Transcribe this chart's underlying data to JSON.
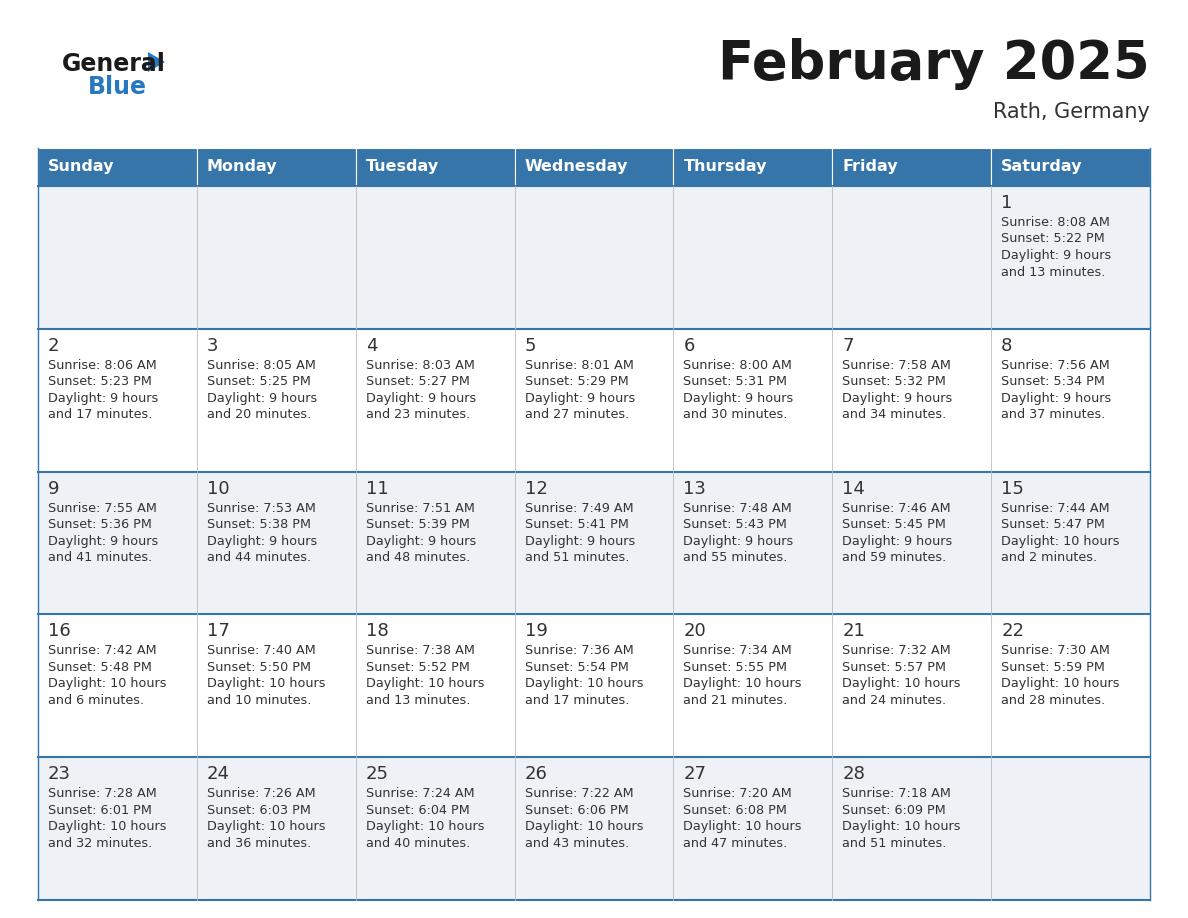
{
  "title": "February 2025",
  "subtitle": "Rath, Germany",
  "days_of_week": [
    "Sunday",
    "Monday",
    "Tuesday",
    "Wednesday",
    "Thursday",
    "Friday",
    "Saturday"
  ],
  "header_bg": "#3575aa",
  "header_text": "#ffffff",
  "cell_bg_odd": "#eef2f7",
  "cell_bg_even": "#ffffff",
  "border_color": "#3575aa",
  "text_color": "#333333",
  "title_color": "#1a1a1a",
  "subtitle_color": "#333333",
  "calendar": [
    [
      {
        "day": null
      },
      {
        "day": null
      },
      {
        "day": null
      },
      {
        "day": null
      },
      {
        "day": null
      },
      {
        "day": null
      },
      {
        "day": 1,
        "sunrise": "8:08 AM",
        "sunset": "5:22 PM",
        "daylight_h": "9 hours",
        "daylight_m": "13 minutes"
      }
    ],
    [
      {
        "day": 2,
        "sunrise": "8:06 AM",
        "sunset": "5:23 PM",
        "daylight_h": "9 hours",
        "daylight_m": "17 minutes"
      },
      {
        "day": 3,
        "sunrise": "8:05 AM",
        "sunset": "5:25 PM",
        "daylight_h": "9 hours",
        "daylight_m": "20 minutes"
      },
      {
        "day": 4,
        "sunrise": "8:03 AM",
        "sunset": "5:27 PM",
        "daylight_h": "9 hours",
        "daylight_m": "23 minutes"
      },
      {
        "day": 5,
        "sunrise": "8:01 AM",
        "sunset": "5:29 PM",
        "daylight_h": "9 hours",
        "daylight_m": "27 minutes"
      },
      {
        "day": 6,
        "sunrise": "8:00 AM",
        "sunset": "5:31 PM",
        "daylight_h": "9 hours",
        "daylight_m": "30 minutes"
      },
      {
        "day": 7,
        "sunrise": "7:58 AM",
        "sunset": "5:32 PM",
        "daylight_h": "9 hours",
        "daylight_m": "34 minutes"
      },
      {
        "day": 8,
        "sunrise": "7:56 AM",
        "sunset": "5:34 PM",
        "daylight_h": "9 hours",
        "daylight_m": "37 minutes"
      }
    ],
    [
      {
        "day": 9,
        "sunrise": "7:55 AM",
        "sunset": "5:36 PM",
        "daylight_h": "9 hours",
        "daylight_m": "41 minutes"
      },
      {
        "day": 10,
        "sunrise": "7:53 AM",
        "sunset": "5:38 PM",
        "daylight_h": "9 hours",
        "daylight_m": "44 minutes"
      },
      {
        "day": 11,
        "sunrise": "7:51 AM",
        "sunset": "5:39 PM",
        "daylight_h": "9 hours",
        "daylight_m": "48 minutes"
      },
      {
        "day": 12,
        "sunrise": "7:49 AM",
        "sunset": "5:41 PM",
        "daylight_h": "9 hours",
        "daylight_m": "51 minutes"
      },
      {
        "day": 13,
        "sunrise": "7:48 AM",
        "sunset": "5:43 PM",
        "daylight_h": "9 hours",
        "daylight_m": "55 minutes"
      },
      {
        "day": 14,
        "sunrise": "7:46 AM",
        "sunset": "5:45 PM",
        "daylight_h": "9 hours",
        "daylight_m": "59 minutes"
      },
      {
        "day": 15,
        "sunrise": "7:44 AM",
        "sunset": "5:47 PM",
        "daylight_h": "10 hours",
        "daylight_m": "2 minutes"
      }
    ],
    [
      {
        "day": 16,
        "sunrise": "7:42 AM",
        "sunset": "5:48 PM",
        "daylight_h": "10 hours",
        "daylight_m": "6 minutes"
      },
      {
        "day": 17,
        "sunrise": "7:40 AM",
        "sunset": "5:50 PM",
        "daylight_h": "10 hours",
        "daylight_m": "10 minutes"
      },
      {
        "day": 18,
        "sunrise": "7:38 AM",
        "sunset": "5:52 PM",
        "daylight_h": "10 hours",
        "daylight_m": "13 minutes"
      },
      {
        "day": 19,
        "sunrise": "7:36 AM",
        "sunset": "5:54 PM",
        "daylight_h": "10 hours",
        "daylight_m": "17 minutes"
      },
      {
        "day": 20,
        "sunrise": "7:34 AM",
        "sunset": "5:55 PM",
        "daylight_h": "10 hours",
        "daylight_m": "21 minutes"
      },
      {
        "day": 21,
        "sunrise": "7:32 AM",
        "sunset": "5:57 PM",
        "daylight_h": "10 hours",
        "daylight_m": "24 minutes"
      },
      {
        "day": 22,
        "sunrise": "7:30 AM",
        "sunset": "5:59 PM",
        "daylight_h": "10 hours",
        "daylight_m": "28 minutes"
      }
    ],
    [
      {
        "day": 23,
        "sunrise": "7:28 AM",
        "sunset": "6:01 PM",
        "daylight_h": "10 hours",
        "daylight_m": "32 minutes"
      },
      {
        "day": 24,
        "sunrise": "7:26 AM",
        "sunset": "6:03 PM",
        "daylight_h": "10 hours",
        "daylight_m": "36 minutes"
      },
      {
        "day": 25,
        "sunrise": "7:24 AM",
        "sunset": "6:04 PM",
        "daylight_h": "10 hours",
        "daylight_m": "40 minutes"
      },
      {
        "day": 26,
        "sunrise": "7:22 AM",
        "sunset": "6:06 PM",
        "daylight_h": "10 hours",
        "daylight_m": "43 minutes"
      },
      {
        "day": 27,
        "sunrise": "7:20 AM",
        "sunset": "6:08 PM",
        "daylight_h": "10 hours",
        "daylight_m": "47 minutes"
      },
      {
        "day": 28,
        "sunrise": "7:18 AM",
        "sunset": "6:09 PM",
        "daylight_h": "10 hours",
        "daylight_m": "51 minutes"
      },
      {
        "day": null
      }
    ]
  ]
}
